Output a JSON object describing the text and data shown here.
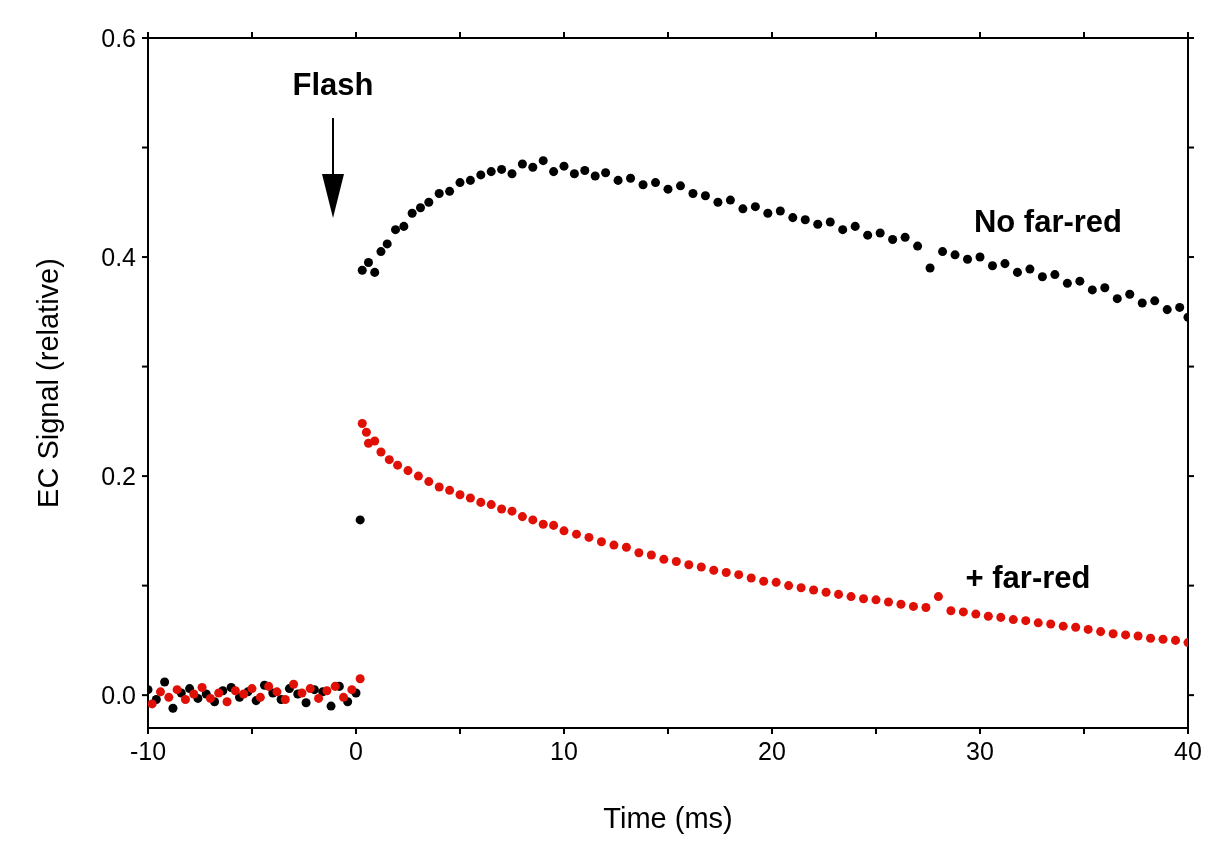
{
  "chart_data": {
    "type": "scatter",
    "xlabel": "Time (ms)",
    "ylabel": "EC Signal (relative)",
    "xlim": [
      -10,
      40
    ],
    "xticks": [
      -10,
      {
        "value": -5,
        "label": null
      },
      0,
      {
        "value": 5,
        "label": null
      },
      10,
      {
        "value": 15,
        "label": null
      },
      20,
      {
        "value": 25,
        "label": null
      },
      30,
      {
        "value": 35,
        "label": null
      },
      40
    ],
    "ylim": [
      -0.03,
      0.6
    ],
    "yticks": [
      {
        "value": 0,
        "label": "0.0"
      },
      {
        "value": 0.1,
        "label": null
      },
      0.2,
      {
        "value": 0.3,
        "label": null
      },
      0.4,
      {
        "value": 0.5,
        "label": null
      },
      0.6
    ],
    "grid": false,
    "legend": false,
    "marker": "circle",
    "annotations": [
      "Flash"
    ],
    "series": [
      {
        "name": "No far-red",
        "color": "#000000",
        "x": [
          -10,
          -9.6,
          -9.2,
          -8.8,
          -8.4,
          -8,
          -7.6,
          -7.2,
          -6.8,
          -6.4,
          -6,
          -5.6,
          -5.2,
          -4.8,
          -4.4,
          -4,
          -3.6,
          -3.2,
          -2.8,
          -2.4,
          -2,
          -1.6,
          -1.2,
          -0.8,
          -0.4,
          0,
          0.2,
          0.3,
          0.6,
          0.9,
          1.2,
          1.5,
          1.9,
          2.3,
          2.7,
          3.1,
          3.5,
          4,
          4.5,
          5,
          5.5,
          6,
          6.5,
          7,
          7.5,
          8,
          8.5,
          9,
          9.5,
          10,
          10.5,
          11,
          11.5,
          12,
          12.6,
          13.2,
          13.8,
          14.4,
          15,
          15.6,
          16.2,
          16.8,
          17.4,
          18,
          18.6,
          19.2,
          19.8,
          20.4,
          21,
          21.6,
          22.2,
          22.8,
          23.4,
          24,
          24.6,
          25.2,
          25.8,
          26.4,
          27,
          27.6,
          28.2,
          28.8,
          29.4,
          30,
          30.6,
          31.2,
          31.8,
          32.4,
          33,
          33.6,
          34.2,
          34.8,
          35.4,
          36,
          36.6,
          37.2,
          37.8,
          38.4,
          39,
          39.6,
          40
        ],
        "values": [
          0.005,
          -0.004,
          0.012,
          -0.012,
          0.002,
          0.006,
          -0.003,
          0.001,
          -0.006,
          0.004,
          0.007,
          -0.002,
          0.003,
          -0.005,
          0.009,
          0.002,
          -0.004,
          0.006,
          0.001,
          -0.007,
          0.005,
          0.003,
          -0.01,
          0.008,
          -0.006,
          0.002,
          0.16,
          0.388,
          0.395,
          0.386,
          0.405,
          0.412,
          0.425,
          0.428,
          0.44,
          0.445,
          0.45,
          0.458,
          0.46,
          0.468,
          0.47,
          0.475,
          0.478,
          0.48,
          0.476,
          0.485,
          0.482,
          0.488,
          0.478,
          0.483,
          0.476,
          0.479,
          0.474,
          0.477,
          0.47,
          0.472,
          0.466,
          0.468,
          0.462,
          0.465,
          0.458,
          0.456,
          0.45,
          0.452,
          0.444,
          0.446,
          0.44,
          0.442,
          0.436,
          0.434,
          0.43,
          0.432,
          0.425,
          0.428,
          0.42,
          0.422,
          0.416,
          0.418,
          0.41,
          0.39,
          0.405,
          0.402,
          0.398,
          0.4,
          0.392,
          0.394,
          0.386,
          0.389,
          0.382,
          0.384,
          0.376,
          0.378,
          0.37,
          0.372,
          0.362,
          0.366,
          0.358,
          0.36,
          0.352,
          0.354,
          0.345
        ]
      },
      {
        "name": "+ far-red",
        "color": "#e01006",
        "x": [
          -9.8,
          -9.4,
          -9,
          -8.6,
          -8.2,
          -7.8,
          -7.4,
          -7,
          -6.6,
          -6.2,
          -5.8,
          -5.4,
          -5,
          -4.6,
          -4.2,
          -3.8,
          -3.4,
          -3,
          -2.6,
          -2.2,
          -1.8,
          -1.4,
          -1,
          -0.6,
          -0.2,
          0.2,
          0.3,
          0.5,
          0.6,
          0.9,
          1.2,
          1.6,
          2,
          2.5,
          3,
          3.5,
          4,
          4.5,
          5,
          5.5,
          6,
          6.5,
          7,
          7.5,
          8,
          8.5,
          9,
          9.5,
          10,
          10.6,
          11.2,
          11.8,
          12.4,
          13,
          13.6,
          14.2,
          14.8,
          15.4,
          16,
          16.6,
          17.2,
          17.8,
          18.4,
          19,
          19.6,
          20.2,
          20.8,
          21.4,
          22,
          22.6,
          23.2,
          23.8,
          24.4,
          25,
          25.6,
          26.2,
          26.8,
          27.4,
          28,
          28.6,
          29.2,
          29.8,
          30.4,
          31,
          31.6,
          32.2,
          32.8,
          33.4,
          34,
          34.6,
          35.2,
          35.8,
          36.4,
          37,
          37.6,
          38.2,
          38.8,
          39.4,
          40
        ],
        "values": [
          -0.008,
          0.003,
          -0.002,
          0.005,
          -0.004,
          0.001,
          0.007,
          -0.003,
          0.002,
          -0.006,
          0.004,
          0.001,
          0.006,
          -0.002,
          0.008,
          0.003,
          -0.004,
          0.01,
          0.002,
          0.006,
          -0.003,
          0.004,
          0.008,
          -0.002,
          0.005,
          0.015,
          0.248,
          0.24,
          0.23,
          0.232,
          0.222,
          0.215,
          0.21,
          0.205,
          0.2,
          0.195,
          0.19,
          0.187,
          0.183,
          0.18,
          0.176,
          0.174,
          0.17,
          0.168,
          0.163,
          0.16,
          0.156,
          0.155,
          0.15,
          0.147,
          0.144,
          0.14,
          0.137,
          0.135,
          0.13,
          0.128,
          0.124,
          0.122,
          0.119,
          0.117,
          0.114,
          0.112,
          0.11,
          0.107,
          0.104,
          0.103,
          0.1,
          0.098,
          0.096,
          0.094,
          0.092,
          0.09,
          0.088,
          0.087,
          0.085,
          0.083,
          0.081,
          0.08,
          0.09,
          0.077,
          0.076,
          0.074,
          0.072,
          0.071,
          0.069,
          0.068,
          0.066,
          0.065,
          0.063,
          0.062,
          0.06,
          0.058,
          0.056,
          0.055,
          0.054,
          0.052,
          0.051,
          0.05,
          0.048
        ]
      }
    ]
  }
}
